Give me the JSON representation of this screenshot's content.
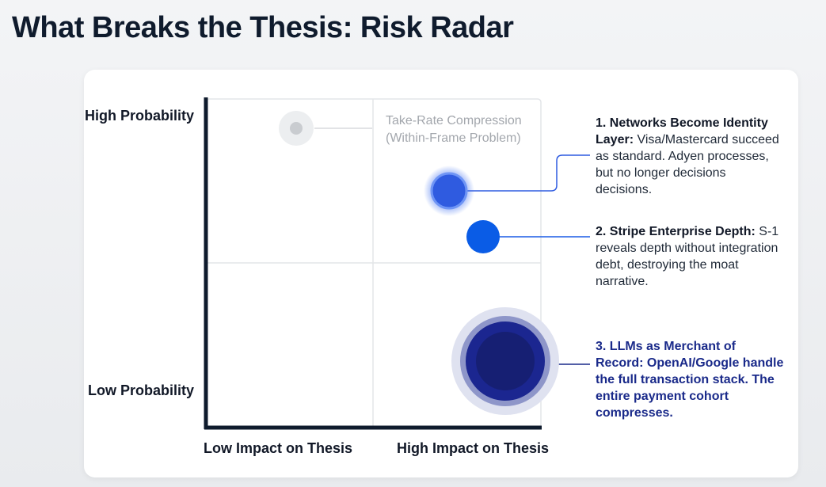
{
  "title": "What Breaks the Thesis: Risk Radar",
  "axes": {
    "y_high": "High Probability",
    "y_low": "Low Probability",
    "x_low": "Low Impact on Thesis",
    "x_high": "High Impact on Thesis"
  },
  "annotation": {
    "lines": [
      "Take-Rate Compression",
      "(Within-Frame Problem)"
    ]
  },
  "risks": [
    {
      "heading": "1. Networks Become Identity Layer:",
      "text": "Visa/Mastercard succeed as standard. Adyen processes, but no longer decisions decisions."
    },
    {
      "heading": "2. Stripe Enterprise Depth:",
      "text": "S-1 reveals depth without integration debt, destroying the moat narrative."
    },
    {
      "heading": "3. LLMs as Merchant of Record: OpenAI/Google handle the full transaction stack. The entire payment cohort compresses."
    }
  ]
}
